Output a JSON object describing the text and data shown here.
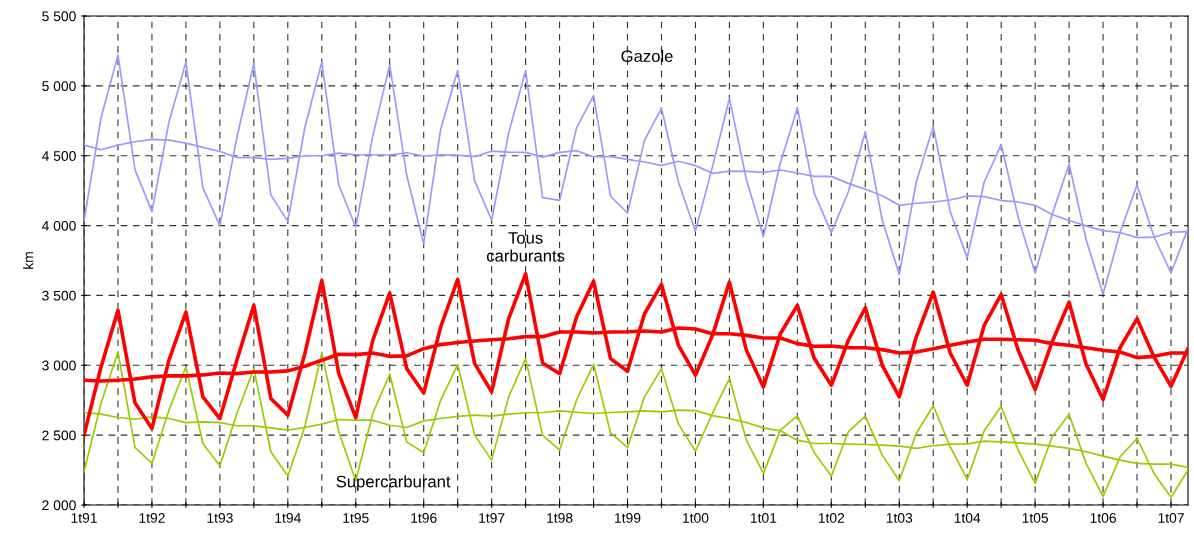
{
  "chart_data": {
    "type": "line",
    "categories": [
      "1t91",
      null,
      null,
      null,
      "1t92",
      null,
      null,
      null,
      "1t93",
      null,
      null,
      null,
      "1t94",
      null,
      null,
      null,
      "1t95",
      null,
      null,
      null,
      "1t96",
      null,
      null,
      null,
      "1t97",
      null,
      null,
      null,
      "1t98",
      null,
      null,
      null,
      "1t99",
      null,
      null,
      null,
      "1t00",
      null,
      null,
      null,
      "1t01",
      null,
      null,
      null,
      "1t02",
      null,
      null,
      null,
      "1t03",
      null,
      null,
      null,
      "1t04",
      null,
      null,
      null,
      "1t05",
      null,
      null,
      null,
      "1t06",
      null,
      null,
      null,
      "1t07",
      null
    ],
    "series": [
      {
        "color": "#9999ff",
        "values": [
          4030,
          4770,
          5220,
          4400,
          4100,
          4740,
          5170,
          4270,
          4000,
          4630,
          5160,
          4220,
          4030,
          4700,
          5170,
          4290,
          3990,
          4640,
          5150,
          4360,
          3870,
          4690,
          5110,
          4320,
          4040,
          4660,
          5110,
          4200,
          4180,
          4700,
          4930,
          4210,
          4090,
          4610,
          4840,
          4310,
          3960,
          4420,
          4910,
          4330,
          3920,
          4450,
          4840,
          4230,
          3950,
          4240,
          4670,
          4040,
          3650,
          4310,
          4710,
          4100,
          3770,
          4310,
          4580,
          4060,
          3660,
          4080,
          4440,
          3900,
          3510,
          3950,
          4290,
          3920,
          3660,
          3980
        ]
      },
      {
        "color": "#9999ff",
        "values": [
          4576,
          4543,
          4576,
          4600,
          4617,
          4612,
          4590,
          4560,
          4530,
          4488,
          4486,
          4474,
          4481,
          4500,
          4500,
          4519,
          4507,
          4507,
          4505,
          4521,
          4498,
          4507,
          4504,
          4493,
          4533,
          4526,
          4524,
          4490,
          4524,
          4536,
          4493,
          4493,
          4474,
          4455,
          4431,
          4460,
          4429,
          4374,
          4390,
          4388,
          4381,
          4398,
          4376,
          4352,
          4352,
          4302,
          4260,
          4214,
          4145,
          4160,
          4169,
          4183,
          4212,
          4207,
          4179,
          4169,
          4145,
          4079,
          4036,
          3998,
          3964,
          3950,
          3914,
          3917,
          3952,
          3957
        ]
      },
      {
        "color": "#99cc00",
        "values": [
          2238,
          2726,
          3095,
          2412,
          2298,
          2679,
          2988,
          2440,
          2279,
          2655,
          2976,
          2381,
          2207,
          2560,
          3088,
          2524,
          2174,
          2655,
          2936,
          2452,
          2374,
          2750,
          3004,
          2500,
          2321,
          2774,
          3048,
          2500,
          2393,
          2750,
          3007,
          2517,
          2412,
          2774,
          2976,
          2579,
          2386,
          2655,
          2905,
          2464,
          2226,
          2536,
          2638,
          2374,
          2207,
          2524,
          2636,
          2357,
          2174,
          2512,
          2710,
          2417,
          2183,
          2531,
          2707,
          2393,
          2155,
          2488,
          2650,
          2298,
          2060,
          2345,
          2476,
          2226,
          2055,
          2250
        ]
      },
      {
        "color": "#99cc00",
        "values": [
          2662,
          2650,
          2626,
          2614,
          2631,
          2619,
          2590,
          2595,
          2590,
          2567,
          2567,
          2552,
          2536,
          2555,
          2579,
          2612,
          2607,
          2607,
          2571,
          2555,
          2602,
          2619,
          2634,
          2643,
          2636,
          2650,
          2660,
          2662,
          2674,
          2664,
          2655,
          2662,
          2667,
          2674,
          2667,
          2679,
          2676,
          2640,
          2619,
          2590,
          2552,
          2531,
          2464,
          2440,
          2440,
          2436,
          2433,
          2429,
          2421,
          2405,
          2424,
          2436,
          2438,
          2457,
          2452,
          2445,
          2436,
          2421,
          2405,
          2381,
          2350,
          2321,
          2298,
          2293,
          2293,
          2269
        ]
      },
      {
        "color": "#ff0000",
        "values": [
          2500,
          2988,
          3393,
          2731,
          2548,
          3036,
          3381,
          2774,
          2619,
          3036,
          3429,
          2762,
          2643,
          3083,
          3607,
          2940,
          2626,
          3179,
          3517,
          2976,
          2802,
          3274,
          3615,
          3012,
          2810,
          3333,
          3655,
          3017,
          2940,
          3345,
          3602,
          3048,
          2957,
          3369,
          3579,
          3143,
          2929,
          3214,
          3595,
          3107,
          2845,
          3226,
          3429,
          3048,
          2857,
          3179,
          3412,
          3000,
          2774,
          3202,
          3524,
          3088,
          2857,
          3286,
          3507,
          3107,
          2826,
          3167,
          3452,
          3007,
          2755,
          3126,
          3333,
          3060,
          2850,
          3119
        ]
      },
      {
        "color": "#ff0000",
        "values": [
          2893,
          2888,
          2893,
          2902,
          2917,
          2924,
          2924,
          2931,
          2945,
          2940,
          2952,
          2952,
          2960,
          2993,
          3036,
          3079,
          3076,
          3088,
          3064,
          3067,
          3119,
          3148,
          3163,
          3174,
          3183,
          3190,
          3205,
          3205,
          3238,
          3238,
          3231,
          3238,
          3240,
          3245,
          3238,
          3267,
          3260,
          3226,
          3226,
          3214,
          3195,
          3195,
          3155,
          3136,
          3138,
          3126,
          3126,
          3112,
          3088,
          3095,
          3119,
          3143,
          3167,
          3186,
          3186,
          3183,
          3179,
          3155,
          3143,
          3126,
          3107,
          3095,
          3055,
          3064,
          3088,
          3088
        ]
      }
    ],
    "ylabel": "km",
    "ylim": [
      2000,
      5500
    ],
    "yticks": [
      {
        "value": 2000,
        "label": "2 000"
      },
      {
        "value": 2500,
        "label": "2 500"
      },
      {
        "value": 3000,
        "label": "3 000"
      },
      {
        "value": 3500,
        "label": "3 500"
      },
      {
        "value": 4000,
        "label": "4 000"
      },
      {
        "value": 4500,
        "label": "4 500"
      },
      {
        "value": 5000,
        "label": "5 000"
      },
      {
        "value": 5500,
        "label": "5 500"
      }
    ],
    "annotations": [
      "Gazole",
      "Tous\ncarburants",
      "Supercarburant"
    ],
    "grid": true,
    "marker": "none",
    "line_style": "solid"
  }
}
